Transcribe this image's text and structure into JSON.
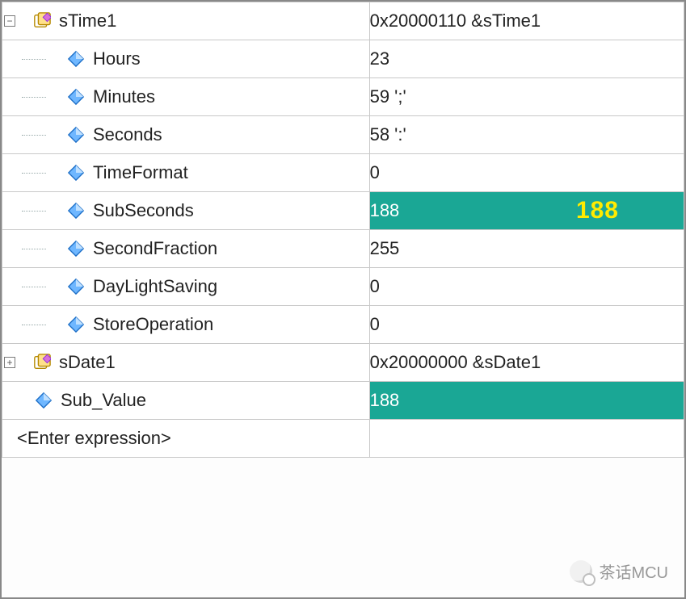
{
  "colors": {
    "highlight_bg": "#1aa795",
    "highlight_overlay_text": "#ffeb00",
    "border": "#c8c8c8",
    "tree_guide": "#99aaaa"
  },
  "rows": [
    {
      "kind": "struct",
      "name": "sTime1",
      "value": "0x20000110 &sTime1",
      "highlight": false,
      "toggle": "-"
    },
    {
      "kind": "field",
      "name": "Hours",
      "value": "23",
      "highlight": false
    },
    {
      "kind": "field",
      "name": "Minutes",
      "value": "59 ';'",
      "highlight": false
    },
    {
      "kind": "field",
      "name": "Seconds",
      "value": "58 ':'",
      "highlight": false
    },
    {
      "kind": "field",
      "name": "TimeFormat",
      "value": "0",
      "highlight": false
    },
    {
      "kind": "field",
      "name": "SubSeconds",
      "value": "188",
      "highlight": true,
      "overlay": "188"
    },
    {
      "kind": "field",
      "name": "SecondFraction",
      "value": "255",
      "highlight": false
    },
    {
      "kind": "field",
      "name": "DayLightSaving",
      "value": "0",
      "highlight": false
    },
    {
      "kind": "field",
      "name": "StoreOperation",
      "value": "0",
      "highlight": false,
      "last_child": true
    },
    {
      "kind": "struct",
      "name": "sDate1",
      "value": "0x20000000 &sDate1",
      "highlight": false,
      "toggle": "+"
    },
    {
      "kind": "top_field",
      "name": "Sub_Value",
      "value": "188",
      "highlight": true
    },
    {
      "kind": "entry",
      "name": "<Enter expression>",
      "value": "",
      "highlight": false
    }
  ],
  "watermark": "茶话MCU"
}
